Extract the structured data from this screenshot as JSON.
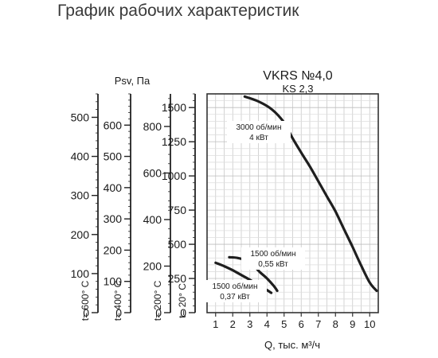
{
  "page_title": "График рабочих характеристик",
  "chart_data": {
    "type": "line",
    "title": "VKRS №4,0",
    "subtitle": "KS 2,3",
    "xlabel": "Q, тыс. м³/ч",
    "ylabel": "Psv, Па",
    "xlim": [
      0.5,
      10.5
    ],
    "ylim": [
      0,
      1600
    ],
    "x_ticks": [
      "1",
      "2",
      "3",
      "4",
      "5",
      "6",
      "7",
      "8",
      "9",
      "10"
    ],
    "y_ticks": [
      "0",
      "250",
      "500",
      "750",
      "1000",
      "1250",
      "1500"
    ],
    "grid": true,
    "series": [
      {
        "name": "3000 об/мин",
        "power": "4 кВт",
        "x": [
          2.7,
          3.5,
          4.3,
          5.0,
          5.5,
          6.0,
          6.5,
          7.0,
          7.5,
          8.0,
          8.5,
          9.0,
          9.5,
          10.0,
          10.4
        ],
        "y": [
          1580,
          1545,
          1485,
          1390,
          1275,
          1170,
          1070,
          960,
          850,
          740,
          610,
          480,
          345,
          220,
          160
        ]
      },
      {
        "name": "1500 об/мин",
        "power": "0,55 кВт",
        "x": [
          1.8,
          2.3,
          2.8,
          3.2,
          3.6,
          4.0,
          4.4,
          4.6
        ],
        "y": [
          405,
          400,
          380,
          345,
          295,
          250,
          195,
          160
        ]
      },
      {
        "name": "1500 об/мин",
        "power": "0,37 кВт",
        "x": [
          1.0,
          1.5,
          2.0,
          2.5,
          3.0,
          3.5,
          4.0,
          4.25
        ],
        "y": [
          365,
          340,
          310,
          275,
          240,
          200,
          165,
          145
        ]
      }
    ],
    "temperature_scales": [
      {
        "label": "t= 20° C",
        "max": 1600,
        "ticks": [
          "0",
          "250",
          "500",
          "750",
          "1000",
          "1250",
          "1500"
        ]
      },
      {
        "label": "t= 200° C",
        "max": 940,
        "ticks": [
          "0",
          "200",
          "400",
          "600",
          "800"
        ]
      },
      {
        "label": "t= 400° C",
        "max": 700,
        "ticks": [
          "0",
          "100",
          "200",
          "300",
          "400",
          "500",
          "600"
        ]
      },
      {
        "label": "t= 600° C",
        "max": 560,
        "ticks": [
          "0",
          "100",
          "200",
          "300",
          "400",
          "500"
        ]
      }
    ]
  }
}
